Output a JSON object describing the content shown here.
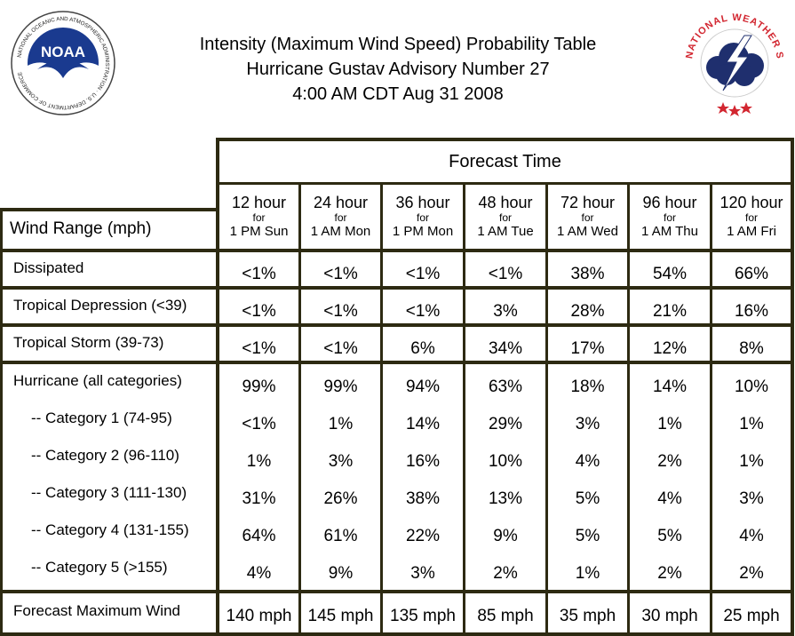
{
  "title_lines": [
    "Intensity (Maximum Wind Speed) Probability Table",
    "Hurricane Gustav Advisory Number 27",
    "4:00 AM CDT Aug 31 2008"
  ],
  "logos": {
    "noaa": {
      "center_text": "NOAA",
      "ring_text": "NATIONAL OCEANIC AND ATMOSPHERIC ADMINISTRATION · U.S. DEPARTMENT OF COMMERCE"
    },
    "nws": {
      "ring_text": "NATIONAL WEATHER SERVICE"
    }
  },
  "table": {
    "forecast_time_label": "Forecast Time",
    "wind_range_label": "Wind Range (mph)",
    "columns": [
      {
        "hour": "12 hour",
        "for": "for",
        "when": "1 PM Sun"
      },
      {
        "hour": "24 hour",
        "for": "for",
        "when": "1 AM Mon"
      },
      {
        "hour": "36 hour",
        "for": "for",
        "when": "1 PM Mon"
      },
      {
        "hour": "48 hour",
        "for": "for",
        "when": "1 AM Tue"
      },
      {
        "hour": "72 hour",
        "for": "for",
        "when": "1 AM Wed"
      },
      {
        "hour": "96 hour",
        "for": "for",
        "when": "1 AM Thu"
      },
      {
        "hour": "120 hour",
        "for": "for",
        "when": "1 AM Fri"
      }
    ],
    "rows": [
      {
        "label": "Dissipated",
        "values": [
          "<1%",
          "<1%",
          "<1%",
          "<1%",
          "38%",
          "54%",
          "66%"
        ]
      },
      {
        "label": "Tropical Depression (<39)",
        "values": [
          "<1%",
          "<1%",
          "<1%",
          "3%",
          "28%",
          "21%",
          "16%"
        ]
      },
      {
        "label": "Tropical Storm (39-73)",
        "values": [
          "<1%",
          "<1%",
          "6%",
          "34%",
          "17%",
          "12%",
          "8%"
        ]
      },
      {
        "label": "Hurricane (all categories)",
        "values": [
          "99%",
          "99%",
          "94%",
          "63%",
          "18%",
          "14%",
          "10%"
        ]
      },
      {
        "label": "-- Category 1 (74-95)",
        "values": [
          "<1%",
          "1%",
          "14%",
          "29%",
          "3%",
          "1%",
          "1%"
        ]
      },
      {
        "label": "-- Category 2 (96-110)",
        "values": [
          "1%",
          "3%",
          "16%",
          "10%",
          "4%",
          "2%",
          "1%"
        ]
      },
      {
        "label": "-- Category 3 (111-130)",
        "values": [
          "31%",
          "26%",
          "38%",
          "13%",
          "5%",
          "4%",
          "3%"
        ]
      },
      {
        "label": "-- Category 4 (131-155)",
        "values": [
          "64%",
          "61%",
          "22%",
          "9%",
          "5%",
          "5%",
          "4%"
        ]
      },
      {
        "label": "-- Category 5 (>155)",
        "values": [
          "4%",
          "9%",
          "3%",
          "2%",
          "1%",
          "2%",
          "2%"
        ]
      }
    ],
    "max_wind": {
      "label": "Forecast Maximum Wind",
      "values": [
        "140 mph",
        "145 mph",
        "135 mph",
        "85 mph",
        "35 mph",
        "30 mph",
        "25 mph"
      ]
    }
  },
  "colors": {
    "border": "#2d2a12",
    "nws_red": "#d22630",
    "nws_cloud": "#1f2f6e",
    "noaa_blue": "#1a3a8f"
  }
}
